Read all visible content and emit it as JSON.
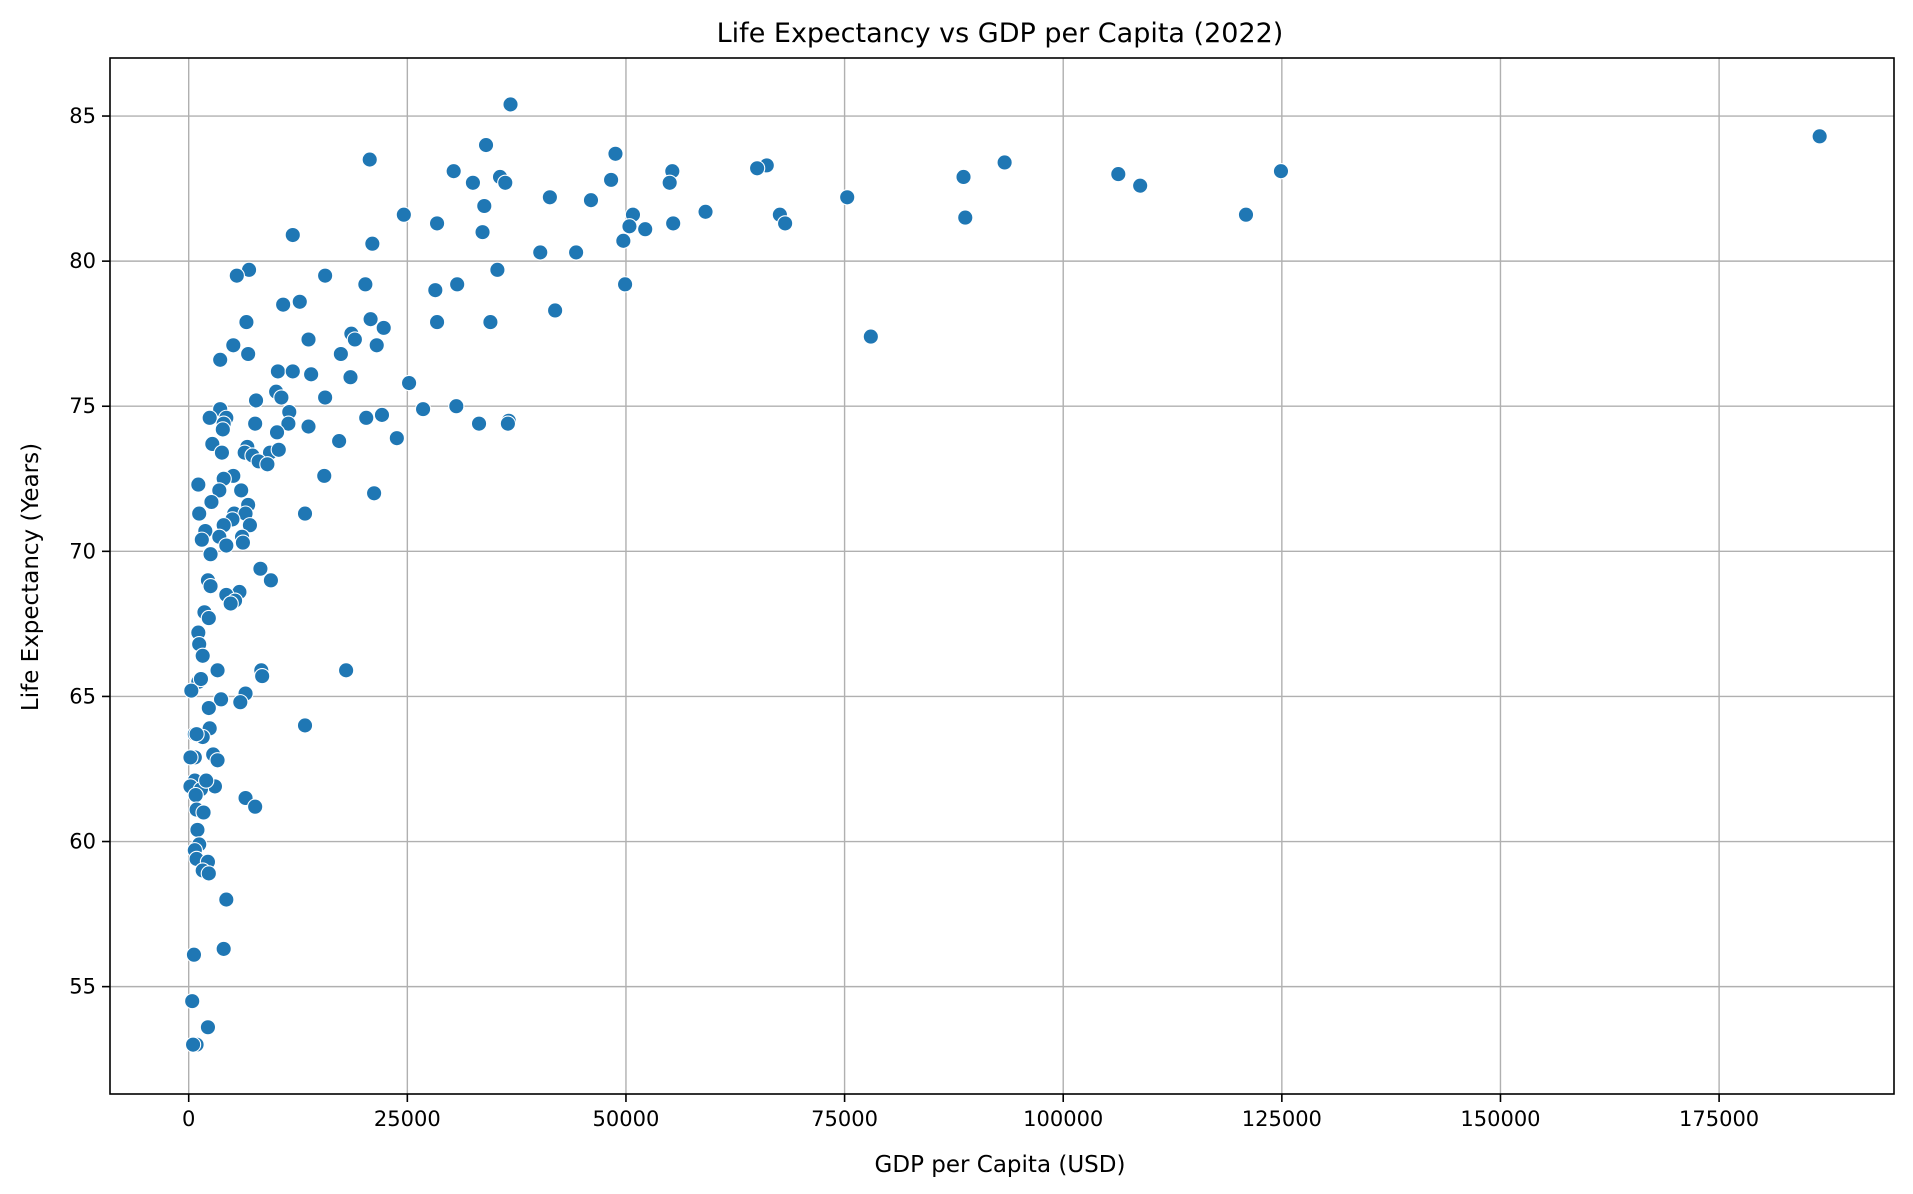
{
  "chart_data": {
    "type": "scatter",
    "title": "Life Expectancy vs GDP per Capita (2022)",
    "xlabel": "GDP per Capita (USD)",
    "ylabel": "Life Expectancy (Years)",
    "xlim": [
      -9000,
      195000
    ],
    "ylim": [
      51.3,
      87.0
    ],
    "xticks": [
      0,
      25000,
      50000,
      75000,
      100000,
      125000,
      150000,
      175000
    ],
    "yticks": [
      55,
      60,
      65,
      70,
      75,
      80,
      85
    ],
    "grid": true,
    "marker_color": "#1f77b4",
    "points": [
      [
        36800,
        85.4
      ],
      [
        186500,
        84.3
      ],
      [
        34000,
        84.0
      ],
      [
        48800,
        83.7
      ],
      [
        20700,
        83.5
      ],
      [
        93300,
        83.4
      ],
      [
        66100,
        83.3
      ],
      [
        65000,
        83.2
      ],
      [
        30300,
        83.1
      ],
      [
        55300,
        83.1
      ],
      [
        124900,
        83.1
      ],
      [
        106300,
        83.0
      ],
      [
        35600,
        82.9
      ],
      [
        88600,
        82.9
      ],
      [
        36200,
        82.7
      ],
      [
        32500,
        82.7
      ],
      [
        48300,
        82.8
      ],
      [
        55000,
        82.7
      ],
      [
        108800,
        82.6
      ],
      [
        41300,
        82.2
      ],
      [
        75300,
        82.2
      ],
      [
        46000,
        82.1
      ],
      [
        33800,
        81.9
      ],
      [
        59100,
        81.7
      ],
      [
        50800,
        81.6
      ],
      [
        24600,
        81.6
      ],
      [
        67600,
        81.6
      ],
      [
        120900,
        81.6
      ],
      [
        88800,
        81.5
      ],
      [
        28400,
        81.3
      ],
      [
        55400,
        81.3
      ],
      [
        68200,
        81.3
      ],
      [
        50400,
        81.2
      ],
      [
        52200,
        81.1
      ],
      [
        33600,
        81.0
      ],
      [
        11900,
        80.9
      ],
      [
        49700,
        80.7
      ],
      [
        21000,
        80.6
      ],
      [
        40200,
        80.3
      ],
      [
        44300,
        80.3
      ],
      [
        35300,
        79.7
      ],
      [
        6900,
        79.7
      ],
      [
        15600,
        79.5
      ],
      [
        5500,
        79.5
      ],
      [
        20200,
        79.2
      ],
      [
        30700,
        79.2
      ],
      [
        49900,
        79.2
      ],
      [
        28200,
        79.0
      ],
      [
        12700,
        78.6
      ],
      [
        10800,
        78.5
      ],
      [
        41900,
        78.3
      ],
      [
        20800,
        78.0
      ],
      [
        28400,
        77.9
      ],
      [
        34500,
        77.9
      ],
      [
        6600,
        77.9
      ],
      [
        22300,
        77.7
      ],
      [
        18600,
        77.5
      ],
      [
        78000,
        77.4
      ],
      [
        19000,
        77.3
      ],
      [
        13700,
        77.3
      ],
      [
        5100,
        77.1
      ],
      [
        21500,
        77.1
      ],
      [
        6800,
        76.8
      ],
      [
        17400,
        76.8
      ],
      [
        3600,
        76.6
      ],
      [
        10200,
        76.2
      ],
      [
        11900,
        76.2
      ],
      [
        14000,
        76.1
      ],
      [
        18500,
        76.0
      ],
      [
        25200,
        75.8
      ],
      [
        10000,
        75.5
      ],
      [
        15600,
        75.3
      ],
      [
        7700,
        75.2
      ],
      [
        10600,
        75.3
      ],
      [
        3600,
        74.9
      ],
      [
        26800,
        74.9
      ],
      [
        30600,
        75.0
      ],
      [
        11500,
        74.8
      ],
      [
        22100,
        74.7
      ],
      [
        20300,
        74.6
      ],
      [
        36600,
        74.5
      ],
      [
        2400,
        74.6
      ],
      [
        4300,
        74.6
      ],
      [
        4000,
        74.4
      ],
      [
        7600,
        74.4
      ],
      [
        11400,
        74.4
      ],
      [
        13700,
        74.3
      ],
      [
        33200,
        74.4
      ],
      [
        36500,
        74.4
      ],
      [
        3900,
        74.2
      ],
      [
        10100,
        74.1
      ],
      [
        23800,
        73.9
      ],
      [
        17200,
        73.8
      ],
      [
        2700,
        73.7
      ],
      [
        6700,
        73.6
      ],
      [
        3800,
        73.4
      ],
      [
        6400,
        73.4
      ],
      [
        9300,
        73.4
      ],
      [
        10300,
        73.5
      ],
      [
        7300,
        73.3
      ],
      [
        8000,
        73.1
      ],
      [
        9000,
        73.0
      ],
      [
        5100,
        72.6
      ],
      [
        15500,
        72.6
      ],
      [
        4000,
        72.5
      ],
      [
        1100,
        72.3
      ],
      [
        3500,
        72.1
      ],
      [
        6000,
        72.1
      ],
      [
        21200,
        72.0
      ],
      [
        2600,
        71.7
      ],
      [
        6800,
        71.6
      ],
      [
        5200,
        71.3
      ],
      [
        1200,
        71.3
      ],
      [
        6500,
        71.3
      ],
      [
        13300,
        71.3
      ],
      [
        5000,
        71.1
      ],
      [
        7000,
        70.9
      ],
      [
        4000,
        70.9
      ],
      [
        1900,
        70.7
      ],
      [
        3500,
        70.5
      ],
      [
        6100,
        70.5
      ],
      [
        1500,
        70.4
      ],
      [
        6200,
        70.3
      ],
      [
        4300,
        70.2
      ],
      [
        2500,
        69.9
      ],
      [
        8200,
        69.4
      ],
      [
        2200,
        69.0
      ],
      [
        9400,
        69.0
      ],
      [
        5800,
        68.6
      ],
      [
        4300,
        68.5
      ],
      [
        2500,
        68.8
      ],
      [
        5300,
        68.3
      ],
      [
        4800,
        68.2
      ],
      [
        1800,
        67.9
      ],
      [
        2300,
        67.7
      ],
      [
        1100,
        67.2
      ],
      [
        1200,
        66.8
      ],
      [
        1600,
        66.4
      ],
      [
        3300,
        65.9
      ],
      [
        8300,
        65.9
      ],
      [
        18000,
        65.9
      ],
      [
        8400,
        65.7
      ],
      [
        1100,
        65.5
      ],
      [
        300,
        65.2
      ],
      [
        6500,
        65.1
      ],
      [
        3700,
        64.9
      ],
      [
        5900,
        64.8
      ],
      [
        2300,
        64.6
      ],
      [
        13300,
        64.0
      ],
      [
        2400,
        63.9
      ],
      [
        700,
        63.7
      ],
      [
        1600,
        63.6
      ],
      [
        900,
        63.7
      ],
      [
        2800,
        63.0
      ],
      [
        3300,
        62.8
      ],
      [
        700,
        62.9
      ],
      [
        200,
        62.9
      ],
      [
        700,
        62.1
      ],
      [
        2300,
        62.0
      ],
      [
        3000,
        61.9
      ],
      [
        200,
        61.9
      ],
      [
        1400,
        61.8
      ],
      [
        800,
        61.6
      ],
      [
        6500,
        61.5
      ],
      [
        7600,
        61.2
      ],
      [
        900,
        61.1
      ],
      [
        1700,
        61.0
      ],
      [
        1000,
        60.4
      ],
      [
        1200,
        59.9
      ],
      [
        700,
        59.7
      ],
      [
        900,
        59.4
      ],
      [
        2200,
        59.3
      ],
      [
        1600,
        59.0
      ],
      [
        2300,
        58.9
      ],
      [
        4300,
        58.0
      ],
      [
        4000,
        56.3
      ],
      [
        600,
        56.1
      ],
      [
        400,
        54.5
      ],
      [
        2200,
        53.6
      ],
      [
        900,
        53.0
      ],
      [
        500,
        53.0
      ],
      [
        1400,
        65.6
      ],
      [
        2000,
        62.1
      ]
    ]
  }
}
